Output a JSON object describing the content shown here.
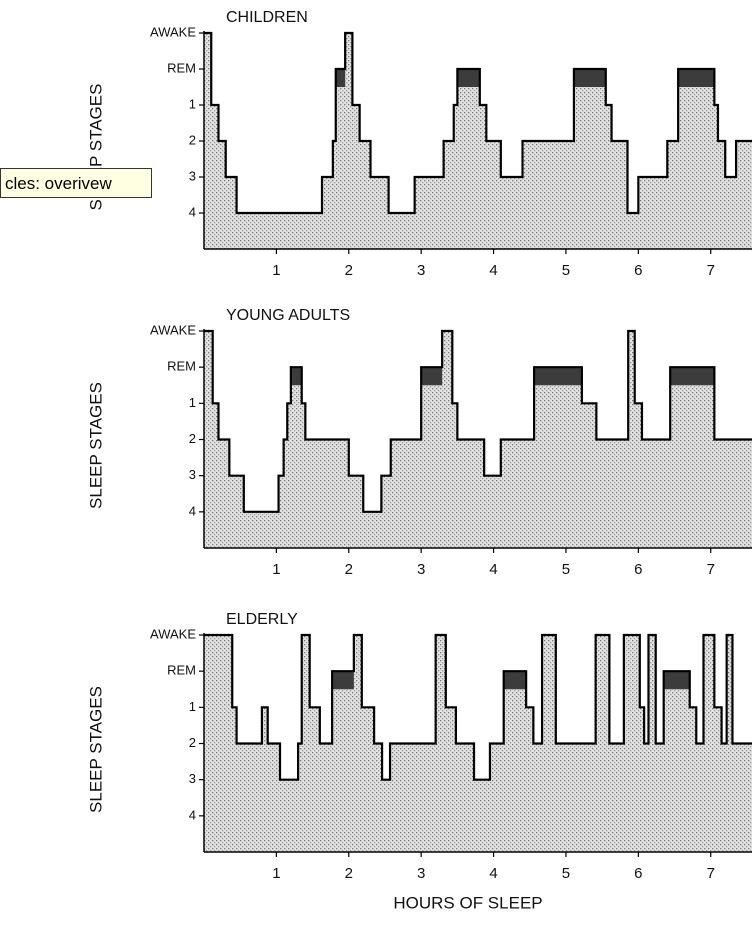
{
  "tooltip": "cles: overivew",
  "chart_data": [
    {
      "type": "step",
      "title": "CHILDREN",
      "y_label": "SLEEP STAGES",
      "x": [
        0,
        0.1,
        0.2,
        0.3,
        0.45,
        1.63,
        1.78,
        1.82,
        1.95,
        2.05,
        2.15,
        2.3,
        2.55,
        2.91,
        3.31,
        3.45,
        3.5,
        3.81,
        3.9,
        4.1,
        4.4,
        5.11,
        5.55,
        5.63,
        5.85,
        6.0,
        6.4,
        6.55,
        7.05,
        7.1,
        7.2,
        7.35
      ],
      "values": [
        0,
        2,
        3,
        4,
        5,
        4,
        3,
        1,
        0,
        2,
        3,
        4,
        5,
        4,
        3,
        2,
        1,
        2,
        3,
        4,
        3,
        1,
        2,
        3,
        5,
        4,
        3,
        1,
        2,
        3,
        4,
        3
      ],
      "xlim": [
        0,
        7.57
      ],
      "xticks": [
        1,
        2,
        3,
        4,
        5,
        6,
        7
      ],
      "ylim": [
        6,
        0
      ],
      "yticks": [
        {
          "value": 0,
          "label": "AWAKE"
        },
        {
          "value": 1,
          "label": "REM"
        },
        {
          "value": 2,
          "label": "1"
        },
        {
          "value": 3,
          "label": "2"
        },
        {
          "value": 4,
          "label": "3"
        },
        {
          "value": 5,
          "label": "4"
        }
      ],
      "color": "#000000",
      "fill": "#cfcfcf",
      "highlight": {
        "value": 1,
        "color": "#3c3c3c"
      }
    },
    {
      "type": "step",
      "title": "YOUNG ADULTS",
      "y_label": "SLEEP STAGES",
      "x": [
        0,
        0.12,
        0.2,
        0.35,
        0.55,
        1.03,
        1.1,
        1.15,
        1.2,
        1.35,
        1.4,
        2.0,
        2.2,
        2.45,
        2.58,
        3.0,
        3.29,
        3.43,
        3.5,
        3.87,
        4.1,
        4.56,
        5.22,
        5.42,
        5.86,
        5.95,
        6.05,
        6.44,
        7.05
      ],
      "values": [
        0,
        2,
        3,
        4,
        5,
        4,
        3,
        2,
        1,
        2,
        3,
        4,
        5,
        4,
        3,
        1,
        0,
        2,
        3,
        4,
        3,
        1,
        2,
        3,
        0,
        2,
        3,
        1,
        3
      ],
      "xlim": [
        0,
        7.57
      ],
      "xticks": [
        1,
        2,
        3,
        4,
        5,
        6,
        7
      ],
      "ylim": [
        6,
        0
      ],
      "yticks": [
        {
          "value": 0,
          "label": "AWAKE"
        },
        {
          "value": 1,
          "label": "REM"
        },
        {
          "value": 2,
          "label": "1"
        },
        {
          "value": 3,
          "label": "2"
        },
        {
          "value": 4,
          "label": "3"
        },
        {
          "value": 5,
          "label": "4"
        }
      ],
      "color": "#000000",
      "fill": "#cfcfcf",
      "highlight": {
        "value": 1,
        "color": "#3c3c3c"
      }
    },
    {
      "type": "step",
      "title": "ELDERLY",
      "y_label": "SLEEP STAGES",
      "x_label": "HOURS OF SLEEP",
      "x": [
        0,
        0.39,
        0.45,
        0.8,
        0.88,
        1.05,
        1.3,
        1.35,
        1.46,
        1.6,
        1.77,
        2.07,
        2.18,
        2.35,
        2.46,
        2.57,
        3.2,
        3.34,
        3.48,
        3.73,
        3.95,
        4.14,
        4.45,
        4.55,
        4.67,
        4.86,
        5.41,
        5.6,
        5.8,
        6.02,
        6.08,
        6.14,
        6.24,
        6.35,
        6.71,
        6.8,
        6.9,
        7.05,
        7.15,
        7.22,
        7.3
      ],
      "values": [
        0,
        2,
        3,
        2,
        3,
        4,
        3,
        0,
        2,
        3,
        1,
        0,
        2,
        3,
        4,
        3,
        0,
        2,
        3,
        4,
        3,
        1,
        2,
        3,
        0,
        3,
        0,
        3,
        0,
        2,
        3,
        0,
        3,
        1,
        2,
        3,
        0,
        2,
        3,
        0,
        3
      ],
      "xlim": [
        0,
        7.57
      ],
      "xticks": [
        1,
        2,
        3,
        4,
        5,
        6,
        7
      ],
      "ylim": [
        6,
        0
      ],
      "yticks": [
        {
          "value": 0,
          "label": "AWAKE"
        },
        {
          "value": 1,
          "label": "REM"
        },
        {
          "value": 2,
          "label": "1"
        },
        {
          "value": 3,
          "label": "2"
        },
        {
          "value": 4,
          "label": "3"
        },
        {
          "value": 5,
          "label": "4"
        }
      ],
      "color": "#000000",
      "fill": "#cfcfcf",
      "highlight": {
        "value": 1,
        "color": "#3c3c3c"
      }
    }
  ]
}
